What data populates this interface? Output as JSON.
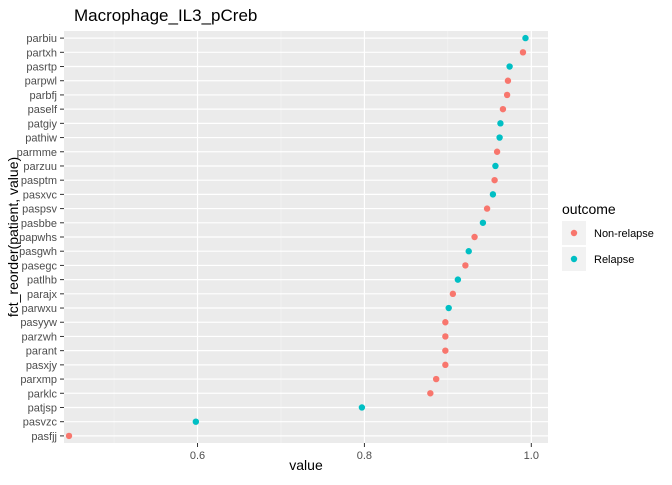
{
  "chart_data": {
    "type": "scatter",
    "title": "Macrophage_IL3_pCreb",
    "xlabel": "value",
    "ylabel": "fct_reorder(patient, value)",
    "xlim": [
      0.44,
      1.02
    ],
    "x_ticks": [
      {
        "value": 0.6,
        "label": "0.6"
      },
      {
        "value": 0.8,
        "label": "0.8"
      },
      {
        "value": 1.0,
        "label": "1.0"
      }
    ],
    "grid": true,
    "legend": {
      "title": "outcome",
      "position": "right",
      "entries": [
        {
          "name": "Non-relapse",
          "color": "#F8766D"
        },
        {
          "name": "Relapse",
          "color": "#00BFC4"
        }
      ]
    },
    "points": [
      {
        "patient": "parbiu",
        "value": 0.993,
        "outcome": "Relapse"
      },
      {
        "patient": "partxh",
        "value": 0.99,
        "outcome": "Non-relapse"
      },
      {
        "patient": "pasrtp",
        "value": 0.974,
        "outcome": "Relapse"
      },
      {
        "patient": "parpwl",
        "value": 0.972,
        "outcome": "Non-relapse"
      },
      {
        "patient": "parbfj",
        "value": 0.971,
        "outcome": "Non-relapse"
      },
      {
        "patient": "paself",
        "value": 0.966,
        "outcome": "Non-relapse"
      },
      {
        "patient": "patgiy",
        "value": 0.963,
        "outcome": "Relapse"
      },
      {
        "patient": "pathiw",
        "value": 0.962,
        "outcome": "Relapse"
      },
      {
        "patient": "parmme",
        "value": 0.959,
        "outcome": "Non-relapse"
      },
      {
        "patient": "parzuu",
        "value": 0.957,
        "outcome": "Relapse"
      },
      {
        "patient": "pasptm",
        "value": 0.956,
        "outcome": "Non-relapse"
      },
      {
        "patient": "pasxvc",
        "value": 0.954,
        "outcome": "Relapse"
      },
      {
        "patient": "paspsv",
        "value": 0.947,
        "outcome": "Non-relapse"
      },
      {
        "patient": "pasbbe",
        "value": 0.942,
        "outcome": "Relapse"
      },
      {
        "patient": "papwhs",
        "value": 0.932,
        "outcome": "Non-relapse"
      },
      {
        "patient": "pasgwh",
        "value": 0.925,
        "outcome": "Relapse"
      },
      {
        "patient": "pasegc",
        "value": 0.921,
        "outcome": "Non-relapse"
      },
      {
        "patient": "patlhb",
        "value": 0.912,
        "outcome": "Relapse"
      },
      {
        "patient": "parajx",
        "value": 0.906,
        "outcome": "Non-relapse"
      },
      {
        "patient": "parwxu",
        "value": 0.901,
        "outcome": "Relapse"
      },
      {
        "patient": "pasyyw",
        "value": 0.897,
        "outcome": "Non-relapse"
      },
      {
        "patient": "parzwh",
        "value": 0.897,
        "outcome": "Non-relapse"
      },
      {
        "patient": "parant",
        "value": 0.897,
        "outcome": "Non-relapse"
      },
      {
        "patient": "pasxjy",
        "value": 0.897,
        "outcome": "Non-relapse"
      },
      {
        "patient": "parxmp",
        "value": 0.886,
        "outcome": "Non-relapse"
      },
      {
        "patient": "parklc",
        "value": 0.879,
        "outcome": "Non-relapse"
      },
      {
        "patient": "patjsp",
        "value": 0.797,
        "outcome": "Relapse"
      },
      {
        "patient": "pasvzc",
        "value": 0.598,
        "outcome": "Relapse"
      },
      {
        "patient": "pasfjj",
        "value": 0.446,
        "outcome": "Non-relapse"
      }
    ]
  }
}
